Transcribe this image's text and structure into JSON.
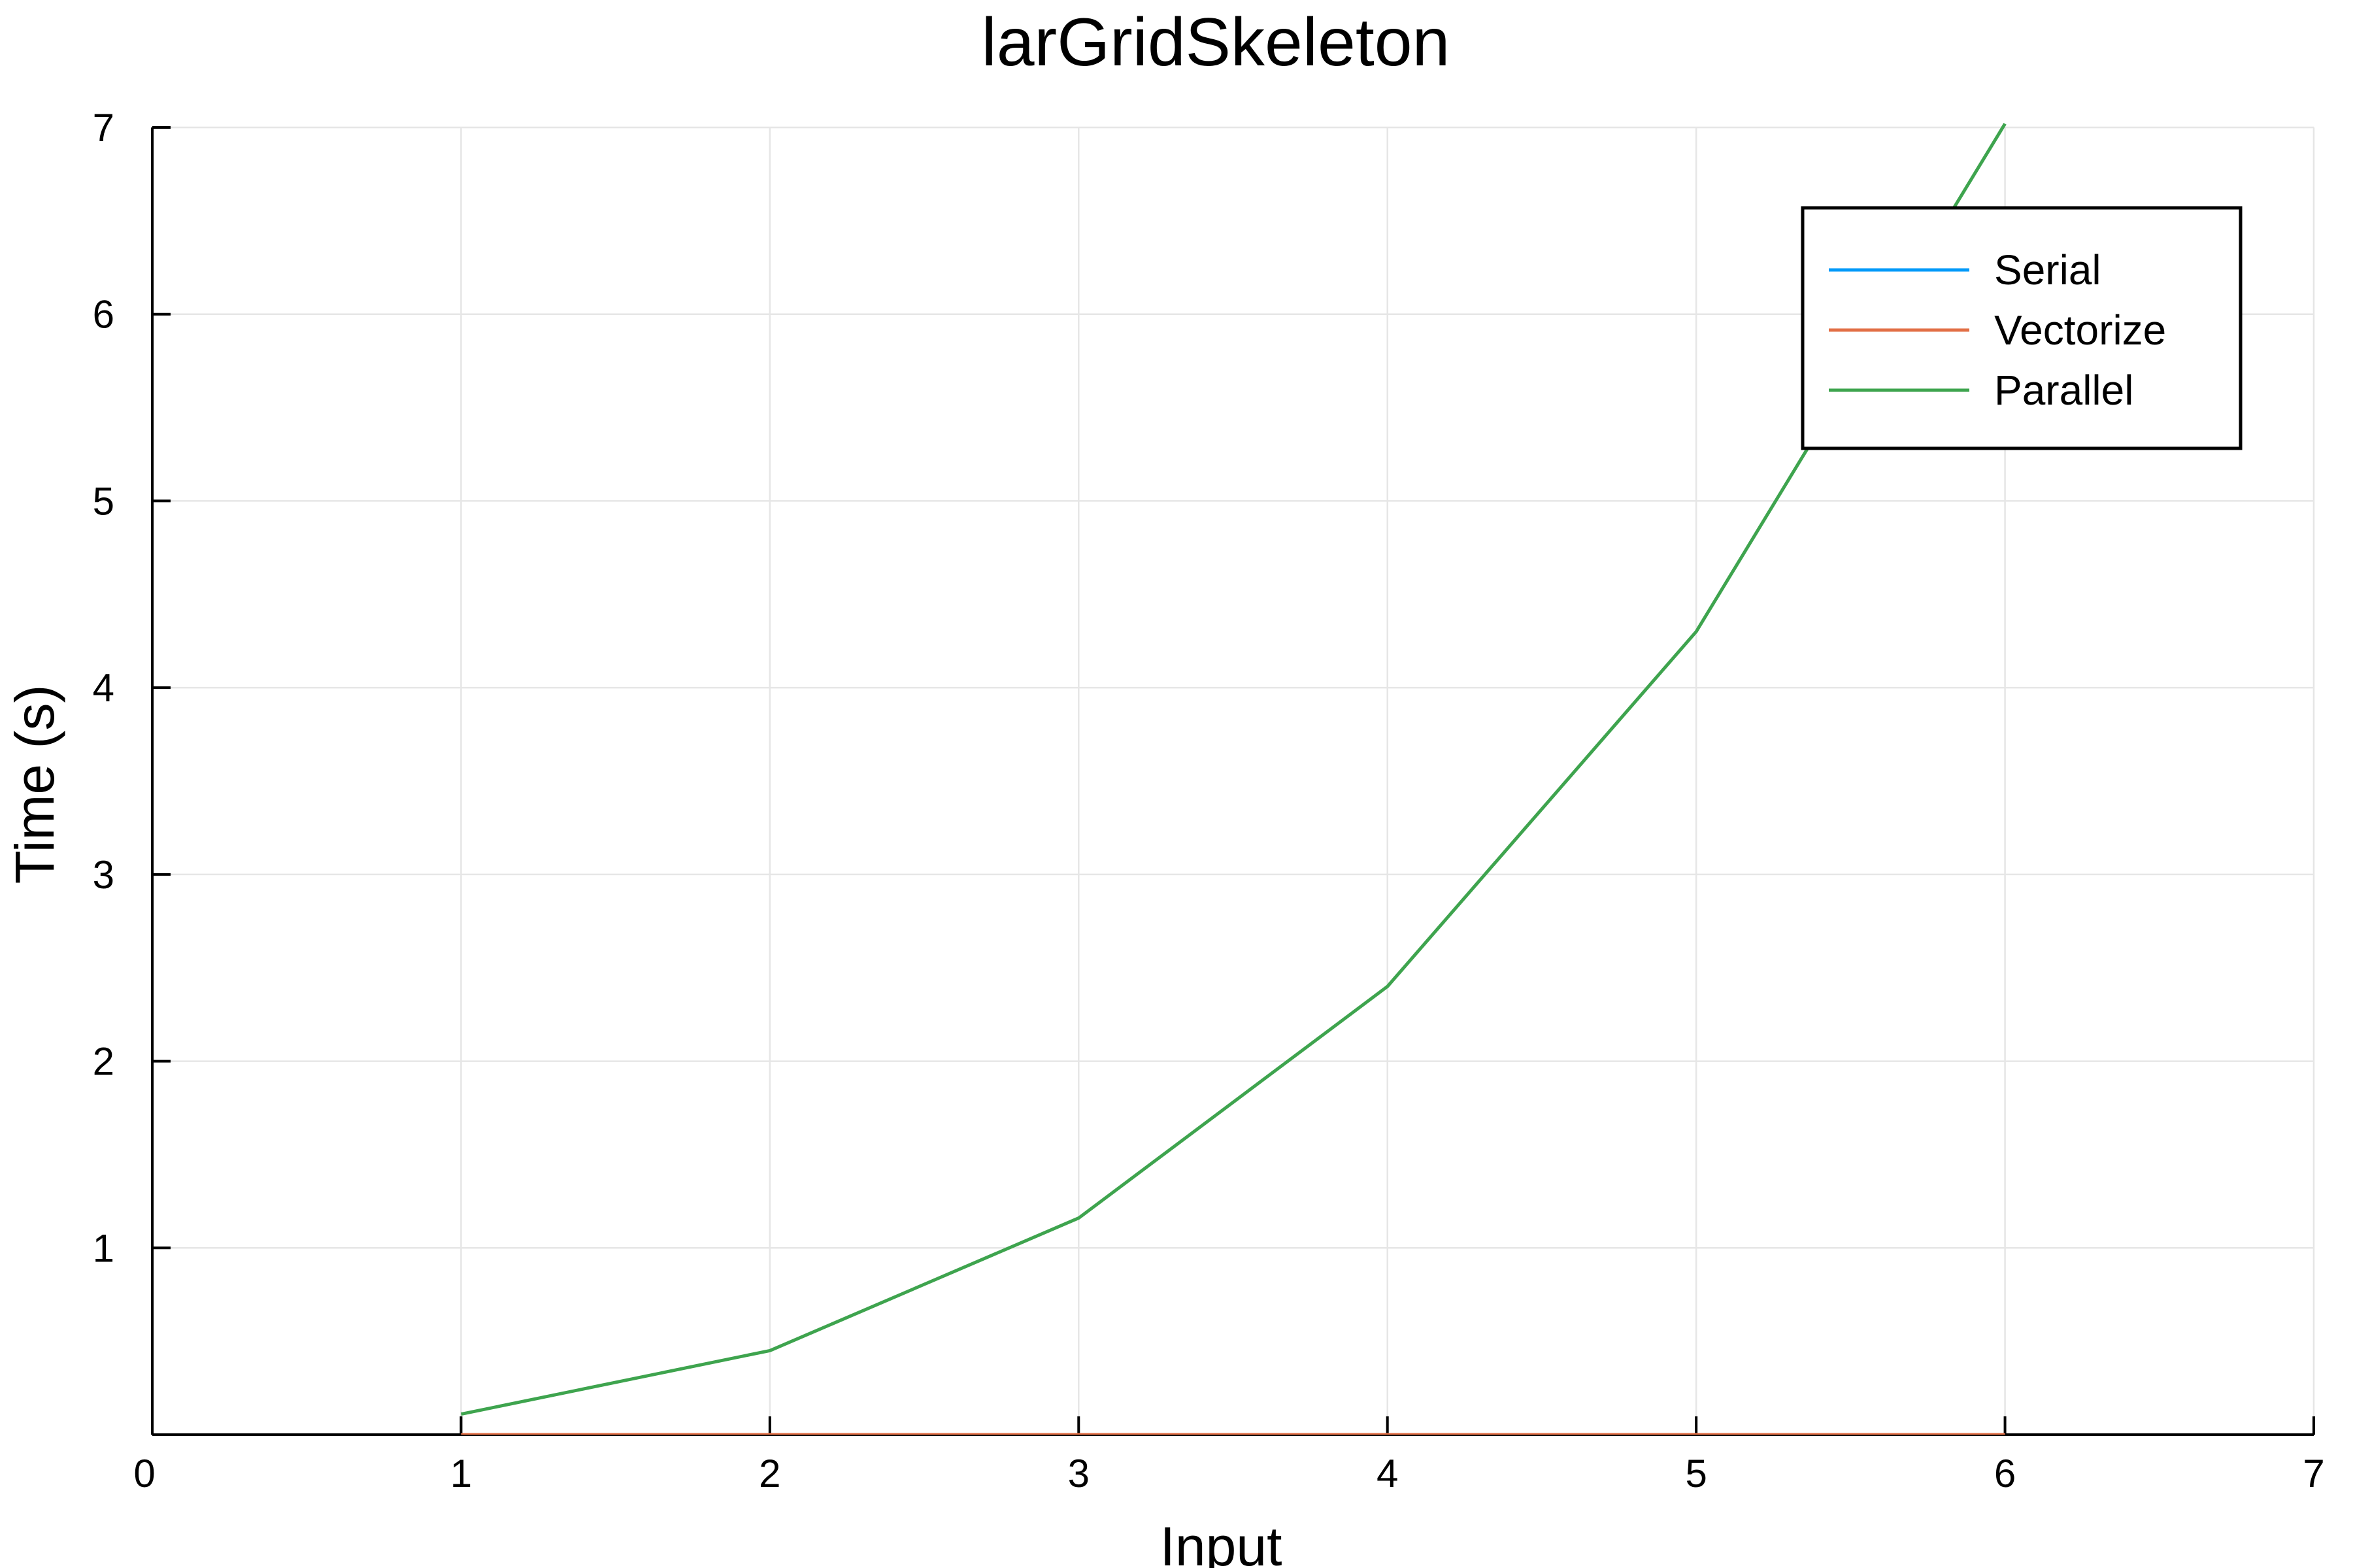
{
  "chart_data": {
    "type": "line",
    "title": "larGridSkeleton",
    "xlabel": "Input",
    "ylabel": "Time (s)",
    "xlim": [
      0,
      7
    ],
    "ylim": [
      0,
      7
    ],
    "xticks": [
      0,
      1,
      2,
      3,
      4,
      5,
      6,
      7
    ],
    "yticks": [
      1,
      2,
      3,
      4,
      5,
      6,
      7
    ],
    "grid": true,
    "legend_position": "top-right",
    "series": [
      {
        "name": "Serial",
        "color": "#009af9",
        "x": [
          1,
          2,
          3,
          4,
          5,
          6
        ],
        "y": [
          0.0,
          0.0,
          0.0,
          0.0,
          0.0,
          0.0
        ]
      },
      {
        "name": "Vectorize",
        "color": "#e26f46",
        "x": [
          1,
          2,
          3,
          4,
          5,
          6
        ],
        "y": [
          0.0,
          0.0,
          0.0,
          0.0,
          0.0,
          0.0
        ]
      },
      {
        "name": "Parallel",
        "color": "#3ea44e",
        "x": [
          1,
          2,
          3,
          4,
          5,
          6
        ],
        "y": [
          0.11,
          0.45,
          1.16,
          2.4,
          4.3,
          7.02
        ]
      }
    ]
  }
}
